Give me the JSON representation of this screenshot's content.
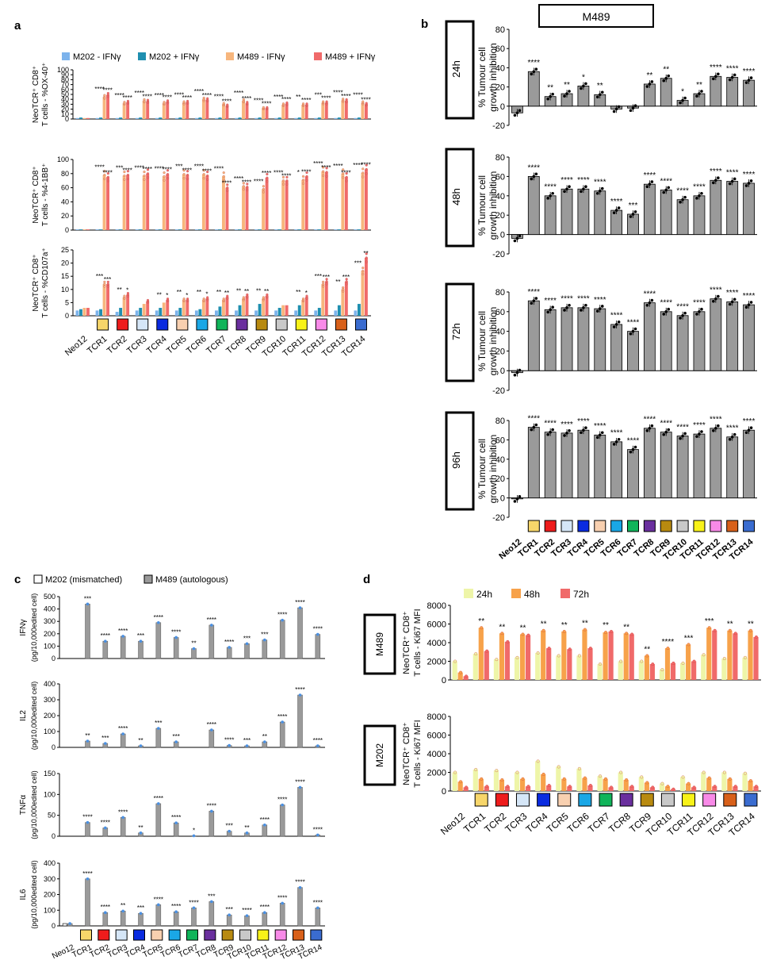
{
  "panel_letters": {
    "a": "a",
    "b": "b",
    "c": "c",
    "d": "d"
  },
  "categories": [
    "Neo12",
    "TCR1",
    "TCR2",
    "TCR3",
    "TCR4",
    "TCR5",
    "TCR6",
    "TCR7",
    "TCR8",
    "TCR9",
    "TCR10",
    "TCR11",
    "TCR12",
    "TCR13",
    "TCR14"
  ],
  "tcr_colors": [
    "#f7d66a",
    "#ee1c1c",
    "#d5e6f7",
    "#0a2be0",
    "#f8d0b0",
    "#1aa7e6",
    "#10b45a",
    "#6a2f9e",
    "#b88a10",
    "#c8c8c8",
    "#f8f218",
    "#f88ae8",
    "#d8601a",
    "#3a6cd0"
  ],
  "chart_data": [
    {
      "panel": "a",
      "type": "bar",
      "legend": [
        "M202 - IFNγ",
        "M202 + IFNγ",
        "M489 - IFNγ",
        "M489 + IFNγ"
      ],
      "colors": [
        "#7cb3ec",
        "#1f8fb0",
        "#f7b67d",
        "#f06a6a"
      ],
      "legend_placement": "top",
      "subplots": [
        {
          "ylabel": [
            "NeoTCR⁺ CD8⁺",
            "T cells - %OX-40⁺"
          ],
          "ylim": [
            0,
            100
          ],
          "yticks": [
            0,
            10,
            20,
            30,
            40,
            50,
            60,
            70,
            80,
            90,
            100
          ],
          "series": [
            [
              2,
              2,
              2,
              2,
              2,
              2,
              2,
              2,
              2,
              2,
              2,
              2,
              2,
              2,
              2
            ],
            [
              3,
              3,
              3,
              3,
              3,
              3,
              3,
              3,
              3,
              3,
              3,
              3,
              3,
              3,
              3
            ],
            [
              2,
              45,
              32,
              37,
              32,
              33,
              40,
              30,
              37,
              22,
              29,
              29,
              33,
              38,
              33
            ],
            [
              2,
              49,
              34,
              36,
              35,
              34,
              39,
              27,
              32,
              22,
              31,
              29,
              33,
              37,
              30
            ]
          ],
          "sig": [
            [
              "",
              "****",
              "****",
              "****",
              "****",
              "****",
              "****",
              "****",
              "****",
              "****",
              "****",
              "**",
              "***",
              "****",
              "****"
            ],
            [
              "",
              "****",
              "****",
              "****",
              "****",
              "****",
              "****",
              "****",
              "****",
              "****",
              "****",
              "****",
              "****",
              "****",
              "****"
            ]
          ]
        },
        {
          "ylabel": [
            "NeoTCR⁺ CD8⁺",
            "T cells - %4-1BB⁺"
          ],
          "ylim": [
            0,
            100
          ],
          "yticks": [
            0,
            20,
            40,
            60,
            80,
            100
          ],
          "series": [
            [
              1,
              1,
              1,
              1,
              1,
              1,
              1,
              1,
              1,
              1,
              1,
              1,
              1,
              1,
              1
            ],
            [
              1,
              1,
              1,
              1,
              1,
              1,
              1,
              1,
              1,
              1,
              1,
              1,
              1,
              1,
              1
            ],
            [
              1,
              78,
              77,
              77,
              76,
              79,
              79,
              76,
              62,
              58,
              70,
              71,
              83,
              80,
              81
            ],
            [
              1,
              75,
              78,
              80,
              79,
              78,
              77,
              60,
              61,
              74,
              70,
              76,
              82,
              75,
              86
            ]
          ],
          "sig": [
            [
              "",
              "****",
              "***",
              "****",
              "****",
              "***",
              "****",
              "****",
              "****",
              "****",
              "****",
              "*",
              "****",
              "****",
              "****"
            ],
            [
              "",
              "****",
              "****",
              "****",
              "****",
              "****",
              "****",
              "****",
              "****",
              "****",
              "****",
              "****",
              "****",
              "****",
              "****"
            ]
          ]
        },
        {
          "ylabel": [
            "NeoTCR⁺ CD8⁺",
            "T cells - %CD107a⁺"
          ],
          "ylim": [
            0,
            25
          ],
          "yticks": [
            0,
            5,
            10,
            15,
            20,
            25
          ],
          "series": [
            [
              2,
              2,
              1.5,
              2,
              2,
              2,
              2,
              2,
              2,
              2,
              2,
              2,
              2,
              2,
              2
            ],
            [
              2.5,
              2.5,
              3,
              3,
              3,
              3,
              2.5,
              3.5,
              4,
              4.5,
              3,
              4,
              3,
              4,
              4.5
            ],
            [
              3,
              12,
              7,
              4.5,
              5,
              6,
              6,
              6,
              6.5,
              6.5,
              4,
              6,
              12,
              10,
              17
            ],
            [
              3,
              12,
              8,
              5.5,
              6,
              6,
              6.5,
              7,
              7.5,
              7.5,
              4,
              7,
              13,
              13,
              22
            ]
          ],
          "sig": [
            [
              "",
              "***",
              "**",
              "",
              "**",
              "**",
              "**",
              "**",
              "**",
              "**",
              "",
              "**",
              "***",
              "**",
              "***"
            ],
            [
              "",
              "***",
              "*",
              "",
              "*",
              "*",
              "*",
              "**",
              "**",
              "**",
              "",
              "*",
              "***",
              "***",
              "**"
            ]
          ]
        }
      ],
      "x_tick_labels": [
        "Neo12",
        "TCR1",
        "TCR2",
        "TCR3",
        "TCR4",
        "TCR5",
        "TCR6",
        "TCR7",
        "TCR8",
        "TCR9",
        "TCR10",
        "TCR11",
        "TCR12",
        "TCR13",
        "TCR14"
      ]
    },
    {
      "panel": "b",
      "type": "bar",
      "title": "M489",
      "ylabel": [
        "% Tumour cell",
        "growth inhibition"
      ],
      "subplots": [
        {
          "time": "24h",
          "ylim": [
            -20,
            80
          ],
          "values": [
            -7,
            36,
            10,
            13,
            21,
            12,
            -3,
            -2,
            23,
            29,
            6,
            13,
            31,
            30,
            27
          ],
          "sig": [
            "",
            "****",
            "**",
            "**",
            "*",
            "**",
            "",
            "",
            "**",
            "**",
            "*",
            "**",
            "****",
            "****",
            "****"
          ]
        },
        {
          "time": "48h",
          "ylim": [
            -20,
            80
          ],
          "values": [
            -4,
            60,
            40,
            47,
            47,
            45,
            25,
            21,
            52,
            46,
            36,
            40,
            56,
            55,
            53
          ],
          "sig": [
            "",
            "****",
            "****",
            "****",
            "****",
            "****",
            "****",
            "***",
            "****",
            "****",
            "****",
            "****",
            "****",
            "****",
            "****"
          ]
        },
        {
          "time": "72h",
          "ylim": [
            -20,
            80
          ],
          "values": [
            -2,
            71,
            62,
            64,
            64,
            63,
            47,
            40,
            69,
            60,
            56,
            60,
            73,
            70,
            67
          ],
          "sig": [
            "",
            "****",
            "****",
            "****",
            "****",
            "****",
            "****",
            "****",
            "****",
            "****",
            "****",
            "****",
            "****",
            "****",
            "****"
          ]
        },
        {
          "time": "96h",
          "ylim": [
            -20,
            80
          ],
          "values": [
            -1,
            73,
            68,
            67,
            70,
            65,
            58,
            50,
            72,
            68,
            64,
            66,
            72,
            63,
            70
          ],
          "sig": [
            "",
            "****",
            "****",
            "****",
            "****",
            "****",
            "****",
            "****",
            "****",
            "****",
            "****",
            "****",
            "****",
            "****",
            "****"
          ]
        }
      ],
      "yticks": [
        -20,
        0,
        20,
        40,
        60,
        80
      ]
    },
    {
      "panel": "c",
      "type": "bar",
      "legend": [
        "M202 (mismatched)",
        "M489 (autologous)"
      ],
      "colors": [
        "#ffffff",
        "#9a9a9a"
      ],
      "ylabel_unit": "(pg/10,000edited cell)",
      "subplots": [
        {
          "name": "IFNγ",
          "ylim": [
            0,
            500
          ],
          "yticks": [
            0,
            100,
            200,
            300,
            400,
            500
          ],
          "m202": [
            0,
            0,
            0,
            0,
            0,
            0,
            0,
            0,
            0,
            0,
            0,
            0,
            0,
            0,
            0
          ],
          "m489": [
            0,
            440,
            140,
            180,
            140,
            290,
            170,
            80,
            270,
            90,
            120,
            150,
            310,
            410,
            195
          ],
          "sig": [
            "",
            "***",
            "****",
            "****",
            "***",
            "****",
            "****",
            "**",
            "****",
            "****",
            "***",
            "***",
            "****",
            "****",
            "****"
          ]
        },
        {
          "name": "IL2",
          "ylim": [
            0,
            400
          ],
          "yticks": [
            0,
            100,
            200,
            300,
            400
          ],
          "m202": [
            0,
            0,
            0,
            0,
            0,
            0,
            0,
            0,
            0,
            0,
            0,
            0,
            0,
            0,
            0
          ],
          "m489": [
            0,
            40,
            25,
            85,
            10,
            120,
            35,
            0,
            110,
            12,
            10,
            35,
            160,
            330,
            10
          ],
          "sig": [
            "",
            "**",
            "***",
            "****",
            "**",
            "***",
            "***",
            "",
            "****",
            "****",
            "***",
            "**",
            "****",
            "****",
            "****"
          ]
        },
        {
          "name": "TNFα",
          "ylim": [
            0,
            150
          ],
          "yticks": [
            0,
            50,
            100,
            150
          ],
          "m202": [
            0,
            0,
            0,
            0,
            0,
            0,
            0,
            0,
            0,
            0,
            0,
            0,
            0,
            0,
            0
          ],
          "m489": [
            0,
            33,
            20,
            45,
            8,
            78,
            32,
            1,
            60,
            12,
            8,
            27,
            75,
            117,
            3
          ],
          "sig": [
            "",
            "****",
            "****",
            "****",
            "**",
            "****",
            "****",
            "*",
            "****",
            "***",
            "**",
            "****",
            "****",
            "****",
            "****"
          ]
        },
        {
          "name": "IL6",
          "ylim": [
            0,
            400
          ],
          "yticks": [
            0,
            100,
            200,
            300,
            400
          ],
          "m202": [
            15,
            0,
            0,
            0,
            0,
            0,
            0,
            0,
            0,
            0,
            0,
            0,
            0,
            0,
            0
          ],
          "m489": [
            15,
            300,
            85,
            95,
            80,
            135,
            90,
            115,
            155,
            70,
            65,
            85,
            145,
            245,
            115
          ],
          "sig": [
            "",
            "****",
            "****",
            "**",
            "***",
            "****",
            "****",
            "****",
            "***",
            "***",
            "****",
            "****",
            "****",
            "****",
            "****"
          ]
        }
      ]
    },
    {
      "panel": "d",
      "type": "bar",
      "legend": [
        "24h",
        "48h",
        "72h"
      ],
      "colors": [
        "#eef5a8",
        "#f7a24a",
        "#f06a6a"
      ],
      "ylabel": [
        "NeoTCR⁺ CD8⁺",
        "T cells - Ki67 MFI"
      ],
      "ylim": [
        0,
        8000
      ],
      "yticks": [
        0,
        2000,
        4000,
        6000,
        8000
      ],
      "subplots": [
        {
          "cell_line": "M489",
          "series": [
            [
              2000,
              2800,
              2200,
              2400,
              2900,
              2600,
              2600,
              1700,
              2000,
              2000,
              1100,
              1800,
              2700,
              2300,
              2400
            ],
            [
              800,
              5600,
              5000,
              4900,
              5300,
              5200,
              5400,
              5100,
              5000,
              2600,
              3400,
              3800,
              5600,
              5300,
              5300
            ],
            [
              400,
              3100,
              4100,
              4800,
              3400,
              3300,
              3400,
              5200,
              4900,
              1700,
              1800,
              2000,
              5300,
              5000,
              4600
            ]
          ],
          "sig": [
            "",
            "**",
            "**",
            "**",
            "**",
            "**",
            "**",
            "**",
            "**",
            "**",
            "****",
            "***",
            "***",
            "**",
            "**"
          ]
        },
        {
          "cell_line": "M202",
          "series": [
            [
              2000,
              2300,
              2200,
              2000,
              3200,
              2600,
              2400,
              1600,
              2000,
              1500,
              800,
              1500,
              2000,
              2000,
              1900
            ],
            [
              1000,
              1300,
              1200,
              1300,
              1800,
              1300,
              1400,
              1300,
              1200,
              900,
              500,
              800,
              1400,
              1300,
              1100
            ],
            [
              400,
              500,
              500,
              500,
              600,
              500,
              600,
              400,
              500,
              400,
              200,
              400,
              500,
              500,
              500
            ]
          ],
          "sig": []
        }
      ]
    }
  ]
}
